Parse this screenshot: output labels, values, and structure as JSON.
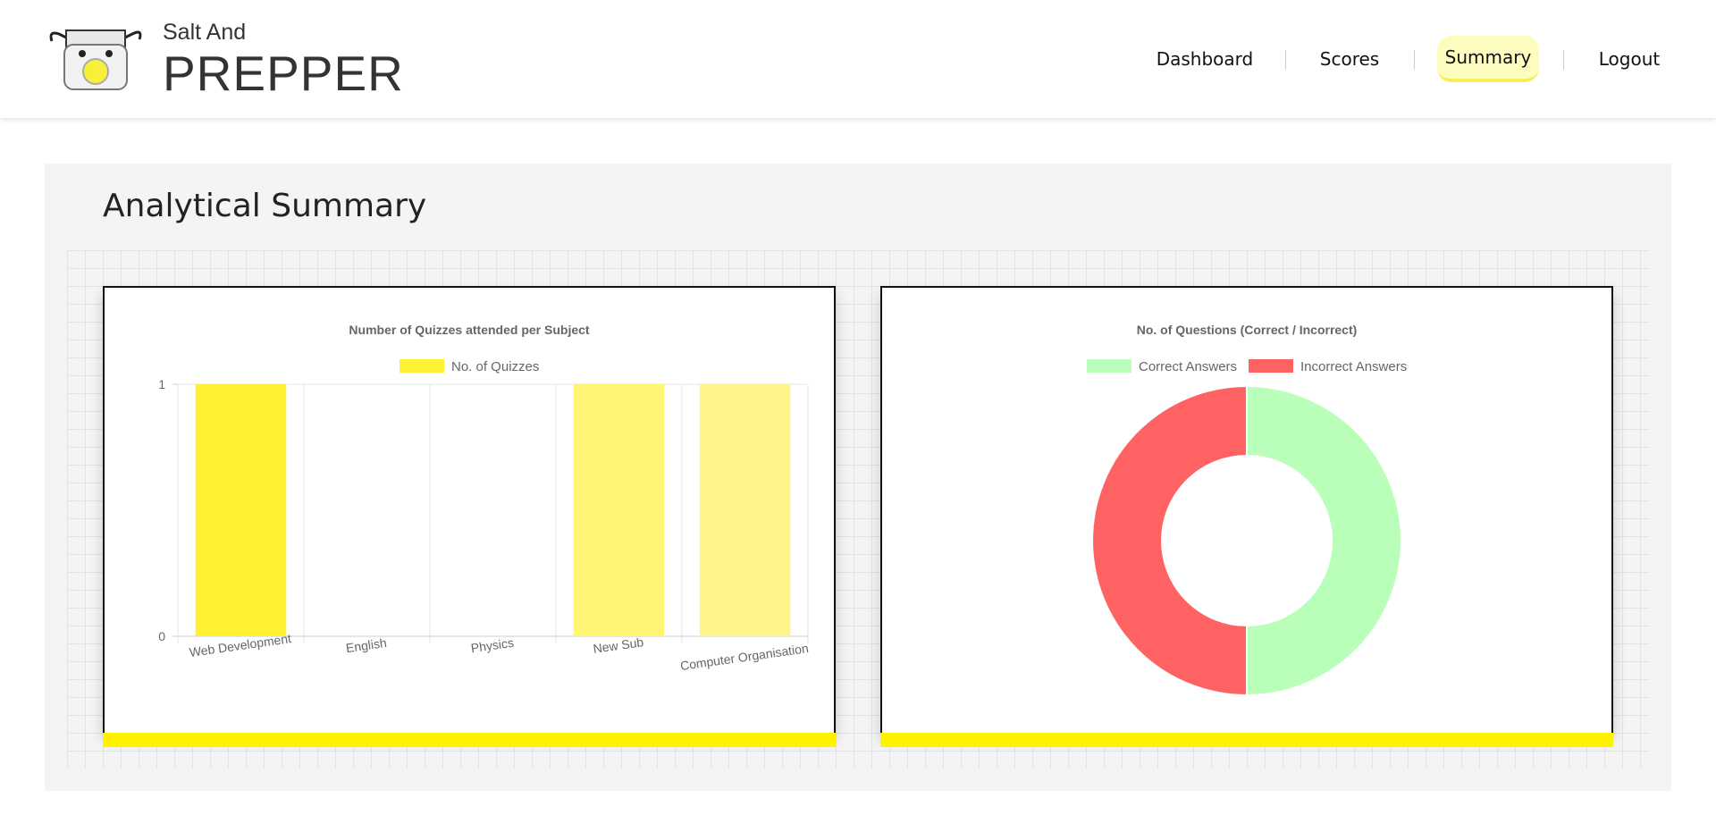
{
  "brand": {
    "small": "Salt And",
    "big": "PREPPER"
  },
  "nav": {
    "dashboard": "Dashboard",
    "scores": "Scores",
    "summary": "Summary",
    "logout": "Logout"
  },
  "page": {
    "title": "Analytical Summary"
  },
  "colors": {
    "accent": "#fff200",
    "active_nav_bg": "#fffcc0"
  },
  "chart_data": [
    {
      "type": "bar",
      "title": "Number of Quizzes attended per Subject",
      "categories": [
        "Web Development",
        "English",
        "Physics",
        "New Sub",
        "Computer Organisation"
      ],
      "series": [
        {
          "name": "No. of Quizzes",
          "values": [
            1,
            0,
            0,
            1,
            1
          ]
        }
      ],
      "ylim": [
        0,
        1
      ],
      "yticks": [
        "0",
        "1"
      ],
      "colors": [
        "#fff033",
        "#fff24d",
        "#fff466",
        "#fff473",
        "#fff48a"
      ],
      "legend": "top",
      "grid": true
    },
    {
      "type": "pie",
      "title": "No. of Questions (Correct / Incorrect)",
      "labels": [
        "Correct Answers",
        "Incorrect Answers"
      ],
      "values": [
        1,
        1
      ],
      "colors": [
        "#b9ffb9",
        "#ff6262"
      ],
      "legend": "top",
      "doughnut": true
    }
  ]
}
